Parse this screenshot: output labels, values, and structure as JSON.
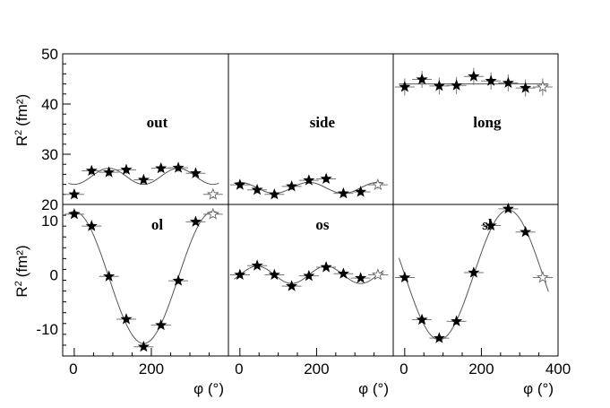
{
  "chart_data": {
    "type": "scatter",
    "x_axis": {
      "label_symbol": "φ",
      "label_unit": "(°)",
      "xlim": [
        -30,
        400
      ],
      "ticks": [
        0,
        200,
        400
      ],
      "tick_labels": [
        "0",
        "200",
        "400"
      ]
    },
    "panels": [
      {
        "label": "out",
        "row": "top",
        "ylabel_symbol": "R",
        "ylabel_unit": "(fm²)",
        "ylim": [
          20,
          50
        ],
        "yticks": [
          20,
          30,
          40,
          50
        ],
        "x": [
          0,
          45,
          90,
          135,
          180,
          225,
          270,
          315,
          360
        ],
        "values": [
          22.0,
          26.7,
          26.4,
          26.9,
          24.9,
          27.2,
          27.3,
          26.2,
          22.0
        ],
        "y_err": [
          0.8,
          0.8,
          0.8,
          0.8,
          0.8,
          0.8,
          0.8,
          0.8,
          0.8
        ],
        "open_points": [
          8
        ],
        "fit": {
          "c0": 25.6,
          "c2": -1.6,
          "s2": 0
        }
      },
      {
        "label": "side",
        "row": "top",
        "ylim": [
          20,
          50
        ],
        "x": [
          0,
          45,
          90,
          135,
          180,
          225,
          270,
          315,
          360
        ],
        "values": [
          23.9,
          22.9,
          22.0,
          23.6,
          24.8,
          25.1,
          22.2,
          22.5,
          23.9
        ],
        "y_err": [
          0.7,
          0.7,
          0.7,
          0.7,
          0.7,
          0.7,
          0.7,
          0.7,
          0.7
        ],
        "open_points": [
          8
        ],
        "fit": {
          "c0": 23.3,
          "c2": 1.1,
          "s2": 0
        }
      },
      {
        "label": "long",
        "row": "top",
        "ylim": [
          20,
          50
        ],
        "x": [
          0,
          45,
          90,
          135,
          180,
          225,
          270,
          315,
          360
        ],
        "values": [
          43.4,
          44.9,
          43.6,
          43.7,
          45.5,
          44.6,
          44.2,
          43.2,
          43.4
        ],
        "y_err": [
          1.7,
          1.7,
          1.7,
          1.7,
          1.7,
          1.7,
          1.7,
          1.7,
          1.7
        ],
        "open_points": [
          8
        ],
        "fit": {
          "c0": 44.0,
          "c2": 0,
          "s2": 0
        }
      },
      {
        "label": "ol",
        "row": "bottom",
        "ylabel_symbol": "R",
        "ylabel_unit": "(fm²)",
        "ylim": [
          -15,
          13
        ],
        "yticks": [
          -10,
          0,
          10
        ],
        "x": [
          0,
          45,
          90,
          135,
          180,
          225,
          270,
          315,
          360
        ],
        "values": [
          11.2,
          9.0,
          -0.3,
          -8.2,
          -13.3,
          -9.3,
          -1.1,
          9.8,
          11.2
        ],
        "y_err": [
          0.6,
          0.6,
          0.6,
          0.6,
          0.6,
          0.6,
          0.6,
          0.6,
          0.6
        ],
        "open_points": [
          8
        ],
        "fit": {
          "c1": 12.2,
          "s1": 0,
          "c0": -0.5
        }
      },
      {
        "label": "os",
        "row": "bottom",
        "ylim": [
          -15,
          13
        ],
        "x": [
          0,
          45,
          90,
          135,
          180,
          225,
          270,
          315,
          360
        ],
        "values": [
          0.0,
          1.7,
          0.0,
          -2.1,
          -0.2,
          1.4,
          0.2,
          -0.6,
          0.0
        ],
        "y_err": [
          0.5,
          0.5,
          0.5,
          0.5,
          0.5,
          0.5,
          0.5,
          0.5,
          0.5
        ],
        "open_points": [
          8
        ],
        "fit": {
          "c0": 0,
          "s2": 1.6,
          "c2": 0
        }
      },
      {
        "label": "sl",
        "row": "bottom",
        "ylim": [
          -15,
          13
        ],
        "x": [
          0,
          45,
          90,
          135,
          180,
          225,
          270,
          315,
          360
        ],
        "values": [
          -0.5,
          -8.3,
          -11.7,
          -8.6,
          0.4,
          9.1,
          12.2,
          7.9,
          -0.5
        ],
        "y_err": [
          0.6,
          0.6,
          0.6,
          0.6,
          0.6,
          0.6,
          0.6,
          0.6,
          0.6
        ],
        "open_points": [
          8
        ],
        "fit": {
          "s1": -12.0,
          "c1": 0,
          "c0": 0
        }
      }
    ]
  }
}
